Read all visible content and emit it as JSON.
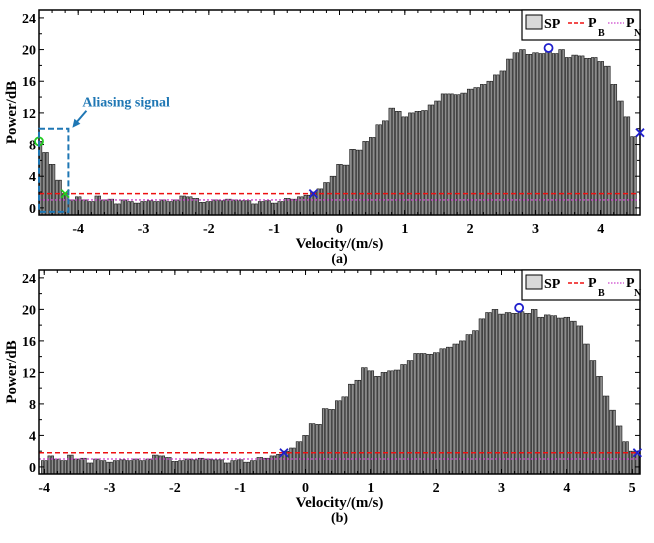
{
  "chart_data": [
    {
      "type": "bar",
      "panel_label": "(a)",
      "xlabel": "Velocity/(m/s)",
      "ylabel": "Power/dB",
      "xlim": [
        -4.6,
        4.6
      ],
      "ylim": [
        -0.9,
        25
      ],
      "xticks": [
        -4,
        -3,
        -2,
        -1,
        0,
        1,
        2,
        3,
        4
      ],
      "yticks": [
        0,
        4,
        8,
        12,
        16,
        20,
        24
      ],
      "x_start": -4.6,
      "x_step": 0.1,
      "values": [
        8.4,
        7.0,
        5.5,
        3.5,
        1.8,
        1.0,
        1.4,
        1.0,
        0.8,
        1.5,
        1.0,
        1.1,
        0.5,
        1.0,
        0.8,
        0.6,
        0.8,
        0.9,
        0.8,
        1.0,
        0.8,
        1.0,
        1.5,
        1.4,
        1.2,
        0.7,
        0.8,
        1.0,
        0.9,
        1.1,
        1.0,
        0.9,
        0.9,
        0.5,
        0.8,
        0.9,
        0.6,
        0.8,
        1.2,
        1.1,
        1.4,
        1.6,
        2.0,
        2.4,
        3.2,
        4.0,
        5.5,
        5.4,
        7.4,
        7.3,
        8.4,
        8.9,
        10.5,
        11.0,
        12.6,
        12.2,
        11.5,
        12.0,
        12.2,
        12.3,
        13.0,
        13.5,
        14.4,
        14.4,
        14.3,
        14.5,
        15.0,
        15.2,
        15.6,
        16.0,
        16.8,
        17.3,
        18.8,
        19.6,
        20.0,
        19.4,
        19.6,
        19.5,
        19.7,
        19.5,
        20.0,
        19.0,
        19.3,
        19.2,
        18.9,
        19.0,
        18.5,
        17.9,
        15.6,
        13.5,
        11.5,
        9.0
      ],
      "P_B": 1.8,
      "P_N": 1.0,
      "legend": {
        "position": "top-right",
        "entries": [
          "SP",
          "P",
          "P"
        ],
        "subscripts": [
          "",
          "B",
          "N"
        ]
      },
      "markers": [
        {
          "shape": "circle",
          "color": "#22cc22",
          "x": -4.6,
          "y": 8.4
        },
        {
          "shape": "x",
          "color": "#22cc22",
          "x": -4.2,
          "y": 1.8
        },
        {
          "shape": "x",
          "color": "#1f1fcc",
          "x": -0.4,
          "y": 1.8
        },
        {
          "shape": "circle",
          "color": "#1f1fcc",
          "x": 3.2,
          "y": 20.2
        },
        {
          "shape": "x",
          "color": "#1f1fcc",
          "x": 4.6,
          "y": 9.5
        }
      ],
      "annotation": {
        "text": "Aliasing signal",
        "box_x": [
          -4.6,
          -4.15
        ],
        "box_y": [
          -0.5,
          10
        ],
        "color": "#1f77b4"
      }
    },
    {
      "type": "bar",
      "panel_label": "(b)",
      "xlabel": "Velocity/(m/s)",
      "ylabel": "Power/dB",
      "xlim": [
        -4.08,
        5.12
      ],
      "ylim": [
        -0.9,
        25
      ],
      "xticks": [
        -4,
        -3,
        -2,
        -1,
        0,
        1,
        2,
        3,
        4,
        5
      ],
      "yticks": [
        0,
        4,
        8,
        12,
        16,
        20,
        24
      ],
      "x_start": -4.0,
      "x_step": 0.1,
      "values": [
        0.8,
        1.4,
        1.0,
        0.8,
        1.5,
        1.0,
        1.1,
        0.5,
        1.0,
        0.8,
        0.6,
        0.8,
        0.9,
        0.8,
        1.0,
        0.8,
        1.0,
        1.5,
        1.4,
        1.2,
        0.7,
        0.8,
        1.0,
        0.9,
        1.1,
        1.0,
        0.9,
        0.9,
        0.5,
        0.8,
        0.9,
        0.6,
        0.8,
        1.2,
        1.1,
        1.4,
        1.6,
        2.0,
        2.4,
        3.2,
        4.0,
        5.5,
        5.4,
        7.4,
        7.3,
        8.4,
        8.9,
        10.5,
        11.0,
        12.6,
        12.2,
        11.5,
        12.0,
        12.2,
        12.3,
        13.0,
        13.5,
        14.4,
        14.4,
        14.3,
        14.5,
        15.0,
        15.2,
        15.6,
        16.0,
        16.8,
        17.3,
        18.8,
        19.6,
        20.0,
        19.4,
        19.6,
        19.5,
        19.7,
        19.5,
        20.0,
        19.0,
        19.3,
        19.2,
        18.9,
        19.0,
        18.5,
        17.9,
        15.6,
        13.5,
        11.5,
        9.0,
        7.2,
        5.2,
        3.2,
        2.0,
        1.7
      ],
      "P_B": 1.8,
      "P_N": 1.0,
      "legend": {
        "position": "top-right",
        "entries": [
          "SP",
          "P",
          "P"
        ],
        "subscripts": [
          "",
          "B",
          "N"
        ]
      },
      "markers": [
        {
          "shape": "x",
          "color": "#1f1fcc",
          "x": -0.33,
          "y": 1.8
        },
        {
          "shape": "circle",
          "color": "#1f1fcc",
          "x": 3.27,
          "y": 20.2
        },
        {
          "shape": "x",
          "color": "#1f1fcc",
          "x": 5.08,
          "y": 1.8
        }
      ]
    }
  ],
  "colors": {
    "bar_fill": "#8c8c8c",
    "pb_line": "#ee1111",
    "pn_line": "#cc44cc"
  }
}
